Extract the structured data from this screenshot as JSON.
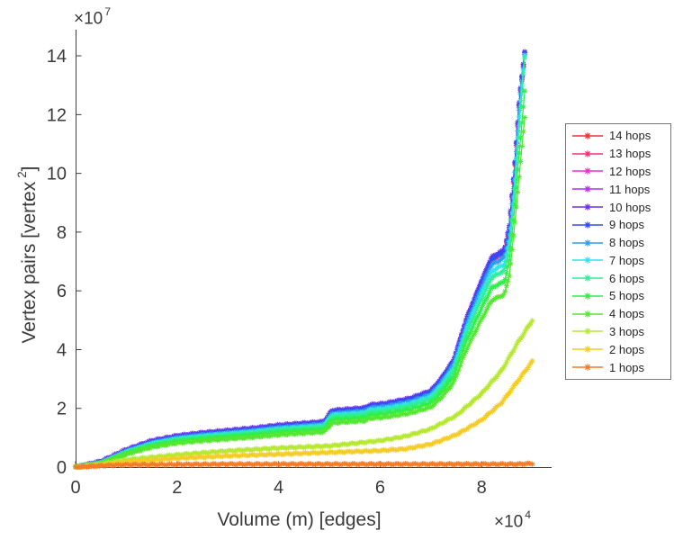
{
  "chart_data": {
    "type": "line",
    "title": "",
    "xlabel": "Volume (m) [edges]",
    "ylabel_parts": {
      "pre": "Vertex pairs [vertex",
      "sup": "2",
      "post": "]"
    },
    "x_offset": {
      "pre": "×10",
      "sup": "4"
    },
    "y_offset": {
      "pre": "×10",
      "sup": "7"
    },
    "x_unit": "edges (axis values ×10^4)",
    "y_unit": "vertex pairs (axis values ×10^7)",
    "xticks": [
      0,
      2,
      4,
      6,
      8
    ],
    "yticks": [
      0,
      2,
      4,
      6,
      8,
      10,
      12,
      14
    ],
    "xlim": [
      0,
      9.38
    ],
    "ylim": [
      0,
      14.9
    ],
    "grid": false,
    "legend_position": "outside-right",
    "marker": "asterisk",
    "series": [
      {
        "name": "14 hops",
        "color": "#f03232",
        "x": [
          0,
          0.5,
          1,
          1.5,
          2,
          2.5,
          3,
          3.5,
          4,
          4.9,
          5.05,
          5.7,
          5.8,
          6.1,
          6.6,
          7.0,
          7.2,
          7.45,
          7.7,
          8.0,
          8.2,
          8.45,
          8.55,
          8.65,
          8.75,
          8.85
        ],
        "y": [
          0,
          0.07,
          0.47,
          0.77,
          0.94,
          1.04,
          1.12,
          1.2,
          1.3,
          1.42,
          1.8,
          1.89,
          1.99,
          2.04,
          2.22,
          2.47,
          2.87,
          3.52,
          4.92,
          6.22,
          7.02,
          7.27,
          8.12,
          10.12,
          12.52,
          14.02
        ]
      },
      {
        "name": "13 hops",
        "color": "#f03273",
        "x": [
          0,
          0.5,
          1,
          1.5,
          2,
          2.5,
          3,
          3.5,
          4,
          4.9,
          5.05,
          5.7,
          5.8,
          6.1,
          6.6,
          7.0,
          7.2,
          7.45,
          7.7,
          8.0,
          8.2,
          8.45,
          8.55,
          8.65,
          8.75,
          8.85
        ],
        "y": [
          0,
          0.1,
          0.5,
          0.8,
          0.97,
          1.07,
          1.15,
          1.23,
          1.33,
          1.45,
          1.83,
          1.92,
          2.02,
          2.07,
          2.25,
          2.5,
          2.9,
          3.55,
          4.95,
          6.25,
          7.05,
          7.3,
          8.15,
          10.15,
          12.55,
          14.05
        ]
      },
      {
        "name": "12 hops",
        "color": "#ee2fc9",
        "x": [
          0,
          0.5,
          1,
          1.5,
          2,
          2.5,
          3,
          3.5,
          4,
          4.9,
          5.05,
          5.7,
          5.8,
          6.1,
          6.6,
          7.0,
          7.2,
          7.45,
          7.7,
          8.0,
          8.2,
          8.45,
          8.55,
          8.65,
          8.75,
          8.85
        ],
        "y": [
          0,
          0.13,
          0.53,
          0.83,
          1.0,
          1.1,
          1.18,
          1.26,
          1.36,
          1.48,
          1.86,
          1.95,
          2.05,
          2.1,
          2.28,
          2.53,
          2.93,
          3.58,
          4.98,
          6.28,
          7.08,
          7.33,
          8.18,
          10.18,
          12.58,
          14.08
        ]
      },
      {
        "name": "11 hops",
        "color": "#b22fee",
        "x": [
          0,
          0.5,
          1,
          1.5,
          2,
          2.5,
          3,
          3.5,
          4,
          4.9,
          5.05,
          5.7,
          5.8,
          6.1,
          6.6,
          7.0,
          7.2,
          7.45,
          7.7,
          8.0,
          8.2,
          8.45,
          8.55,
          8.65,
          8.75,
          8.85
        ],
        "y": [
          0,
          0.17,
          0.57,
          0.87,
          1.04,
          1.14,
          1.22,
          1.3,
          1.4,
          1.52,
          1.9,
          1.99,
          2.09,
          2.14,
          2.32,
          2.57,
          2.97,
          3.62,
          5.02,
          6.32,
          7.12,
          7.37,
          8.22,
          10.22,
          12.62,
          14.12
        ]
      },
      {
        "name": "10 hops",
        "color": "#6c2fee",
        "x": [
          0,
          0.5,
          1,
          1.5,
          2,
          2.5,
          3,
          3.5,
          4,
          4.9,
          5.05,
          5.7,
          5.8,
          6.1,
          6.6,
          7.0,
          7.2,
          7.45,
          7.7,
          8.0,
          8.2,
          8.45,
          8.55,
          8.65,
          8.75,
          8.85
        ],
        "y": [
          0,
          0.2,
          0.6,
          0.9,
          1.07,
          1.17,
          1.25,
          1.33,
          1.43,
          1.55,
          1.93,
          2.02,
          2.12,
          2.17,
          2.35,
          2.6,
          3.0,
          3.65,
          5.05,
          6.35,
          7.15,
          7.4,
          8.25,
          10.25,
          12.65,
          14.15
        ]
      },
      {
        "name": "9 hops",
        "color": "#2f4cee",
        "x": [
          0,
          0.5,
          1,
          1.5,
          2,
          2.5,
          3,
          3.5,
          4,
          4.9,
          5.05,
          5.7,
          5.8,
          6.1,
          6.6,
          7.0,
          7.2,
          7.45,
          7.7,
          8.0,
          8.2,
          8.45,
          8.55,
          8.65,
          8.75,
          8.85
        ],
        "y": [
          0,
          0.15,
          0.55,
          0.85,
          1.02,
          1.12,
          1.2,
          1.28,
          1.38,
          1.5,
          1.88,
          1.97,
          2.07,
          2.12,
          2.3,
          2.55,
          2.95,
          3.6,
          5.0,
          6.3,
          7.1,
          7.35,
          8.2,
          10.2,
          12.6,
          14.1
        ]
      },
      {
        "name": "8 hops",
        "color": "#2f9cee",
        "x": [
          0,
          0.5,
          1,
          1.5,
          2,
          2.5,
          3,
          3.5,
          4,
          4.9,
          5.05,
          5.7,
          5.8,
          6.1,
          6.6,
          7.0,
          7.2,
          7.45,
          7.7,
          8.0,
          8.2,
          8.45,
          8.55,
          8.65,
          8.75,
          8.85
        ],
        "y": [
          0,
          0.14,
          0.53,
          0.82,
          0.99,
          1.09,
          1.16,
          1.24,
          1.34,
          1.46,
          1.82,
          1.91,
          2.01,
          2.06,
          2.23,
          2.47,
          2.86,
          3.49,
          4.85,
          6.11,
          6.89,
          7.13,
          7.95,
          9.9,
          12.4,
          14.05
        ]
      },
      {
        "name": "7 hops",
        "color": "#2fe4ee",
        "x": [
          0,
          0.5,
          1,
          1.5,
          2,
          2.5,
          3,
          3.5,
          4,
          4.9,
          5.05,
          5.7,
          5.8,
          6.1,
          6.6,
          7.0,
          7.2,
          7.45,
          7.7,
          8.0,
          8.2,
          8.45,
          8.55,
          8.65,
          8.75,
          8.85
        ],
        "y": [
          0,
          0.14,
          0.52,
          0.8,
          0.96,
          1.05,
          1.13,
          1.2,
          1.3,
          1.41,
          1.77,
          1.85,
          1.95,
          1.99,
          2.16,
          2.4,
          2.77,
          3.38,
          4.7,
          5.92,
          6.67,
          6.91,
          7.7,
          9.6,
          12.2,
          14.0
        ]
      },
      {
        "name": "6 hops",
        "color": "#2fee9b",
        "x": [
          0,
          0.5,
          1,
          1.5,
          2,
          2.5,
          3,
          3.5,
          4,
          4.9,
          5.05,
          5.7,
          5.8,
          6.1,
          6.6,
          7.0,
          7.2,
          7.45,
          7.7,
          8.0,
          8.2,
          8.45,
          8.55,
          8.65,
          8.75,
          8.85
        ],
        "y": [
          0,
          0.13,
          0.5,
          0.77,
          0.93,
          1.02,
          1.09,
          1.16,
          1.26,
          1.37,
          1.71,
          1.79,
          1.88,
          1.93,
          2.09,
          2.32,
          2.68,
          3.28,
          4.55,
          5.73,
          6.46,
          6.69,
          7.45,
          9.3,
          11.9,
          13.95
        ]
      },
      {
        "name": "5 hops",
        "color": "#2fee4c",
        "x": [
          0,
          0.5,
          1,
          1.5,
          2,
          2.5,
          3,
          3.5,
          4,
          4.9,
          5.05,
          5.7,
          5.8,
          6.1,
          6.6,
          7.0,
          7.2,
          7.45,
          7.7,
          8.0,
          8.2,
          8.45,
          8.55,
          8.65,
          8.75,
          8.85
        ],
        "y": [
          0,
          0.13,
          0.47,
          0.73,
          0.88,
          0.96,
          1.03,
          1.1,
          1.19,
          1.29,
          1.62,
          1.69,
          1.78,
          1.82,
          1.98,
          2.19,
          2.54,
          3.1,
          4.3,
          5.42,
          6.11,
          6.32,
          7.05,
          8.8,
          10.9,
          12.8
        ]
      },
      {
        "name": "4 hops",
        "color": "#55e62f",
        "x": [
          0,
          0.5,
          1,
          1.5,
          2,
          2.5,
          3,
          3.5,
          4,
          4.9,
          5.05,
          5.7,
          5.8,
          6.1,
          6.6,
          7.0,
          7.2,
          7.45,
          7.7,
          8.0,
          8.2,
          8.45,
          8.55,
          8.65,
          8.75,
          8.85
        ],
        "y": [
          0,
          0.12,
          0.44,
          0.68,
          0.82,
          0.9,
          0.96,
          1.02,
          1.1,
          1.2,
          1.5,
          1.58,
          1.66,
          1.7,
          1.84,
          2.04,
          2.36,
          2.88,
          4.0,
          5.04,
          5.68,
          5.88,
          6.55,
          8.2,
          10.1,
          11.9
        ]
      },
      {
        "name": "3 hops",
        "color": "#b6e830",
        "x": [
          0,
          0.5,
          1,
          2,
          3,
          4,
          5,
          6,
          6.5,
          7,
          7.5,
          8,
          8.4,
          8.7,
          9.0
        ],
        "y": [
          0,
          0.1,
          0.25,
          0.42,
          0.55,
          0.65,
          0.72,
          0.9,
          1.05,
          1.3,
          1.75,
          2.5,
          3.3,
          4.2,
          5.0
        ]
      },
      {
        "name": "2 hops",
        "color": "#f4cc25",
        "x": [
          0,
          0.5,
          1,
          2,
          3,
          4,
          5,
          6,
          6.5,
          7,
          7.5,
          8,
          8.4,
          8.7,
          9.0
        ],
        "y": [
          0,
          0.07,
          0.17,
          0.3,
          0.38,
          0.44,
          0.5,
          0.56,
          0.62,
          0.78,
          1.1,
          1.6,
          2.2,
          2.9,
          3.6
        ]
      },
      {
        "name": "1 hops",
        "color": "#f47b25",
        "x": [
          0,
          0.5,
          1,
          2,
          3,
          4,
          5,
          6,
          6.5,
          7,
          7.5,
          8,
          8.4,
          8.7,
          9.0
        ],
        "y": [
          0,
          0.05,
          0.08,
          0.09,
          0.1,
          0.1,
          0.1,
          0.1,
          0.1,
          0.1,
          0.1,
          0.1,
          0.1,
          0.1,
          0.12
        ]
      }
    ]
  }
}
